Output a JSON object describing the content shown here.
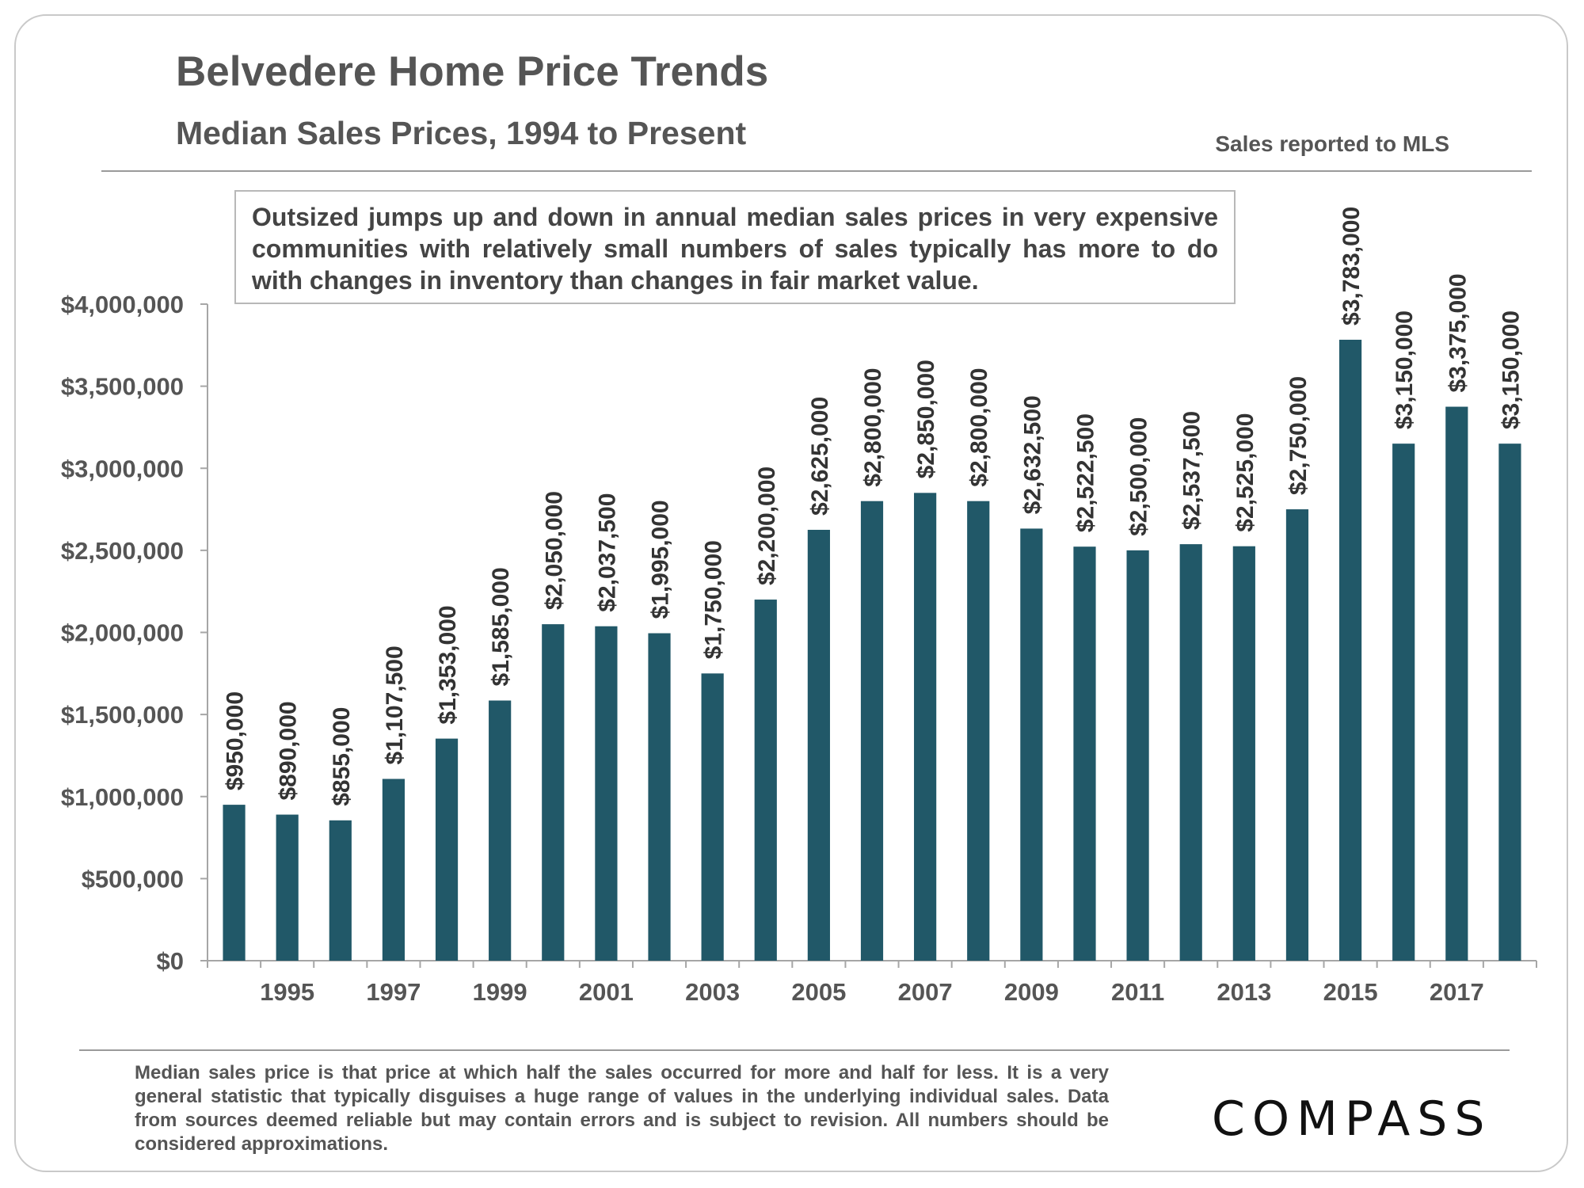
{
  "title": "Belvedere Home Price Trends",
  "subtitle": "Median Sales Prices, 1994 to Present",
  "source_note": "Sales reported to MLS",
  "callout": "Outsized jumps up and down in annual median sales prices in very expensive communities with relatively small numbers of sales typically has more to do with changes in inventory than changes in fair market value.",
  "footnote": "Median sales price is that price at which half the sales occurred for more and half for less. It is a very general statistic that typically disguises a huge range of values in the underlying individual sales. Data from sources deemed reliable but may contain errors and is subject to revision.  All numbers should be considered approximations.",
  "logo": "COMPASS",
  "colors": {
    "bar": "#215868",
    "axis": "#a6a6a6",
    "text": "#555555"
  },
  "chart_data": {
    "type": "bar",
    "title": "Belvedere Home Price Trends",
    "xlabel": "",
    "ylabel": "",
    "ylim": [
      0,
      4000000
    ],
    "grid": false,
    "categories": [
      "1994",
      "1995",
      "1996",
      "1997",
      "1998",
      "1999",
      "2000",
      "2001",
      "2002",
      "2003",
      "2004",
      "2005",
      "2006",
      "2007",
      "2008",
      "2009",
      "2010",
      "2011",
      "2012",
      "2013",
      "2014",
      "2015",
      "2016",
      "2017",
      "2018"
    ],
    "x_tick_labels_shown": [
      "1995",
      "1997",
      "1999",
      "2001",
      "2003",
      "2005",
      "2007",
      "2009",
      "2011",
      "2013",
      "2015",
      "2017"
    ],
    "values": [
      950000,
      890000,
      855000,
      1107500,
      1353000,
      1585000,
      2050000,
      2037500,
      1995000,
      1750000,
      2200000,
      2625000,
      2800000,
      2850000,
      2800000,
      2632500,
      2522500,
      2500000,
      2537500,
      2525000,
      2750000,
      3783000,
      3150000,
      3375000,
      3150000
    ],
    "data_labels": [
      "$950,000",
      "$890,000",
      "$855,000",
      "$1,107,500",
      "$1,353,000",
      "$1,585,000",
      "$2,050,000",
      "$2,037,500",
      "$1,995,000",
      "$1,750,000",
      "$2,200,000",
      "$2,625,000",
      "$2,800,000",
      "$2,850,000",
      "$2,800,000",
      "$2,632,500",
      "$2,522,500",
      "$2,500,000",
      "$2,537,500",
      "$2,525,000",
      "$2,750,000",
      "$3,783,000",
      "$3,150,000",
      "$3,375,000",
      "$3,150,000"
    ],
    "y_ticks": [
      0,
      500000,
      1000000,
      1500000,
      2000000,
      2500000,
      3000000,
      3500000,
      4000000
    ],
    "y_tick_labels": [
      "$0",
      "$500,000",
      "$1,000,000",
      "$1,500,000",
      "$2,000,000",
      "$2,500,000",
      "$3,000,000",
      "$3,500,000",
      "$4,000,000"
    ]
  }
}
